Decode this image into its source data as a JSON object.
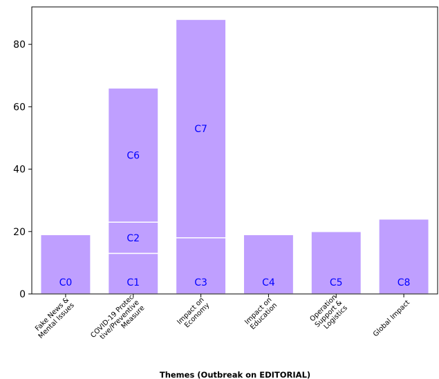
{
  "chart_data": {
    "type": "bar",
    "stacked": true,
    "xlabel": "Themes (Outbreak on EDITORIAL)",
    "ylabel": "",
    "ylim": [
      0,
      92
    ],
    "yticks": [
      0,
      20,
      40,
      60,
      80
    ],
    "grid": false,
    "bar_color": "#bf9fff",
    "edge_color": "#ffffff",
    "label_color": "#0000ff",
    "categories": [
      [
        "Fake News &",
        "Mental Issues"
      ],
      [
        "COVID-19 Protec",
        "tive/Preventive",
        "Measure"
      ],
      [
        "Impact on",
        "Economy"
      ],
      [
        "Impact on",
        "Education"
      ],
      [
        "Operation",
        "Support &",
        "Logistics"
      ],
      [
        "Global Impact"
      ]
    ],
    "bars": [
      [
        {
          "label": "C0",
          "value": 19
        }
      ],
      [
        {
          "label": "C1",
          "value": 13
        },
        {
          "label": "C2",
          "value": 10
        },
        {
          "label": "C6",
          "value": 43
        }
      ],
      [
        {
          "label": "C3",
          "value": 18
        },
        {
          "label": "C7",
          "value": 70
        }
      ],
      [
        {
          "label": "C4",
          "value": 19
        }
      ],
      [
        {
          "label": "C5",
          "value": 20
        }
      ],
      [
        {
          "label": "C8",
          "value": 24
        }
      ]
    ]
  }
}
